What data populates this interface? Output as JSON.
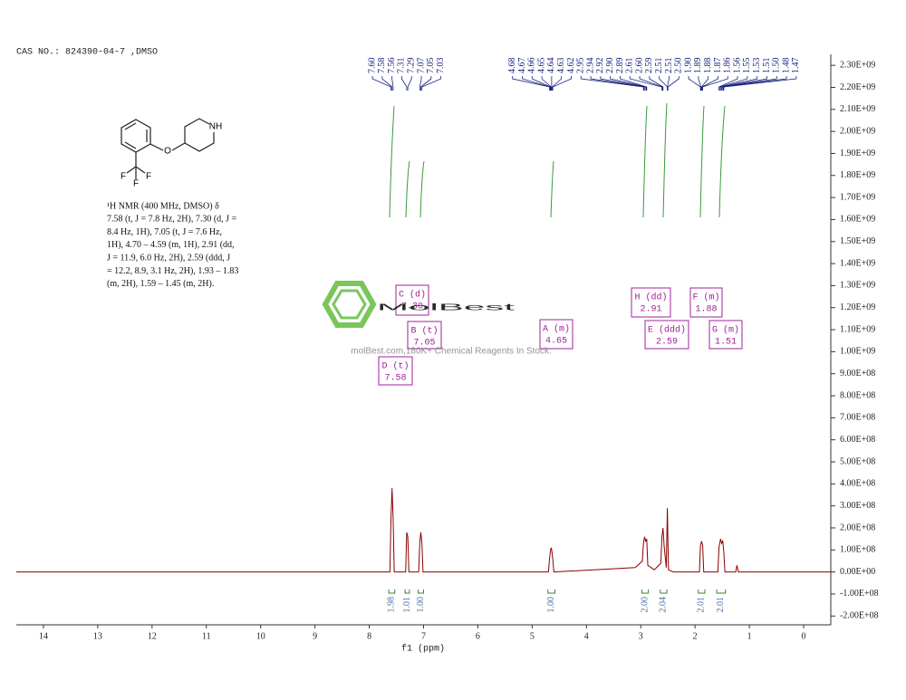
{
  "header": {
    "cas": "CAS NO.: 824390-04-7  ,DMSO"
  },
  "structure": {
    "atoms": [
      "O",
      "NH",
      "F",
      "F",
      "F"
    ]
  },
  "description": [
    "¹H NMR (400 MHz, DMSO) δ",
    "7.58 (t, J = 7.8 Hz, 2H), 7.30 (d, J =",
    "8.4 Hz, 1H), 7.05 (t, J = 7.6 Hz,",
    "1H), 4.70 – 4.59 (m, 1H), 2.91 (dd,",
    "J = 11.9, 6.0 Hz, 2H), 2.59 (ddd, J",
    "= 12.2, 8.9, 3.1 Hz, 2H), 1.93 – 1.83",
    "(m, 2H), 1.59 – 1.45 (m, 2H)."
  ],
  "watermark": {
    "brand": "MolBest",
    "tagline": "molBest.com,180K+ Chemical Reagents In Stock."
  },
  "chart_data": {
    "type": "line",
    "x_label": "f1 (ppm)",
    "color": "#8b0000",
    "xlim": [
      14.5,
      -0.5
    ],
    "xticks": [
      14,
      13,
      12,
      11,
      10,
      9,
      8,
      7,
      6,
      5,
      4,
      3,
      2,
      1,
      0
    ],
    "ylim": [
      -240000000,
      2350000000
    ],
    "yticks": [
      {
        "value": 2300000000,
        "label": "2.30E+09"
      },
      {
        "value": 2200000000,
        "label": "2.20E+09"
      },
      {
        "value": 2100000000,
        "label": "2.10E+09"
      },
      {
        "value": 2000000000,
        "label": "2.00E+09"
      },
      {
        "value": 1900000000,
        "label": "1.90E+09"
      },
      {
        "value": 1800000000,
        "label": "1.80E+09"
      },
      {
        "value": 1700000000,
        "label": "1.70E+09"
      },
      {
        "value": 1600000000,
        "label": "1.60E+09"
      },
      {
        "value": 1500000000,
        "label": "1.50E+09"
      },
      {
        "value": 1400000000,
        "label": "1.40E+09"
      },
      {
        "value": 1300000000,
        "label": "1.30E+09"
      },
      {
        "value": 1200000000,
        "label": "1.20E+09"
      },
      {
        "value": 1100000000,
        "label": "1.10E+09"
      },
      {
        "value": 1000000000,
        "label": "1.00E+09"
      },
      {
        "value": 900000000,
        "label": "9.00E+08"
      },
      {
        "value": 800000000,
        "label": "8.00E+08"
      },
      {
        "value": 700000000,
        "label": "7.00E+08"
      },
      {
        "value": 600000000,
        "label": "6.00E+08"
      },
      {
        "value": 500000000,
        "label": "5.00E+08"
      },
      {
        "value": 400000000,
        "label": "4.00E+08"
      },
      {
        "value": 300000000,
        "label": "3.00E+08"
      },
      {
        "value": 200000000,
        "label": "2.00E+08"
      },
      {
        "value": 100000000,
        "label": "1.00E+08"
      },
      {
        "value": 0,
        "label": "0.00E+00"
      },
      {
        "value": -100000000,
        "label": "-1.00E+08"
      },
      {
        "value": -200000000,
        "label": "-2.00E+08"
      }
    ],
    "x": [
      14.5,
      7.62,
      7.6,
      7.58,
      7.56,
      7.54,
      7.33,
      7.31,
      7.29,
      7.27,
      7.09,
      7.07,
      7.05,
      7.03,
      7.01,
      4.7,
      4.68,
      4.66,
      4.65,
      4.64,
      4.62,
      4.6,
      3.1,
      2.97,
      2.95,
      2.93,
      2.91,
      2.89,
      2.87,
      2.75,
      2.63,
      2.61,
      2.59,
      2.57,
      2.53,
      2.51,
      2.49,
      2.4,
      1.92,
      1.9,
      1.88,
      1.86,
      1.84,
      1.58,
      1.56,
      1.53,
      1.51,
      1.49,
      1.47,
      1.45,
      1.25,
      1.23,
      1.2,
      -0.5
    ],
    "values": [
      0,
      0,
      240000000,
      380000000,
      240000000,
      0,
      0,
      180000000,
      160000000,
      0,
      0,
      130000000,
      180000000,
      130000000,
      0,
      0,
      60000000,
      100000000,
      110000000,
      100000000,
      60000000,
      0,
      20000000,
      50000000,
      130000000,
      160000000,
      140000000,
      150000000,
      30000000,
      10000000,
      40000000,
      160000000,
      200000000,
      120000000,
      20000000,
      290000000,
      10000000,
      0,
      0,
      120000000,
      140000000,
      120000000,
      0,
      0,
      110000000,
      150000000,
      130000000,
      140000000,
      90000000,
      0,
      0,
      30000000,
      0,
      0
    ],
    "peaks": {
      "values": [
        7.6,
        7.58,
        7.56,
        7.31,
        7.29,
        7.07,
        7.05,
        7.03,
        4.68,
        4.67,
        4.66,
        4.65,
        4.64,
        4.63,
        4.62,
        2.95,
        2.94,
        2.92,
        2.9,
        2.89,
        2.61,
        2.6,
        2.59,
        2.51,
        2.51,
        2.5,
        1.9,
        1.89,
        1.88,
        1.87,
        1.86,
        1.56,
        1.55,
        1.53,
        1.51,
        1.5,
        1.48,
        1.47
      ],
      "value_labels": [
        "7.60",
        "7.58",
        "7.56",
        "7.31",
        "7.29",
        "7.07",
        "7.05",
        "7.03",
        "4.68",
        "4.67",
        "4.66",
        "4.65",
        "4.64",
        "4.63",
        "4.62",
        "2.95",
        "2.94",
        "2.92",
        "2.90",
        "2.89",
        "2.61",
        "2.60",
        "2.59",
        "2.51",
        "2.51",
        "2.50",
        "1.90",
        "1.89",
        "1.88",
        "1.87",
        "1.86",
        "1.56",
        "1.55",
        "1.53",
        "1.51",
        "1.50",
        "1.48",
        "1.47"
      ]
    },
    "multiplets": {
      "names": [
        "D (t)",
        "C (d)",
        "B (t)",
        "A (m)",
        "H (dd)",
        "E (ddd)",
        "F (m)",
        "G (m)"
      ],
      "values": [
        7.58,
        7.3,
        7.05,
        4.65,
        2.91,
        2.59,
        1.88,
        1.51
      ],
      "value_labels": [
        "7.58",
        "7.30",
        "7.05",
        "4.65",
        "2.91",
        "2.59",
        "1.88",
        "1.51"
      ]
    },
    "integrals": {
      "from": [
        7.64,
        7.34,
        7.1,
        4.71,
        2.98,
        2.64,
        1.94,
        1.6
      ],
      "to": [
        7.53,
        7.26,
        7.0,
        4.58,
        2.86,
        2.52,
        1.82,
        1.44
      ],
      "values": [
        1.98,
        1.01,
        1,
        1,
        2,
        2.04,
        2.01,
        2.01
      ],
      "value_labels": [
        "1.98",
        "1.01",
        "1.00",
        "1.00",
        "2.00",
        "2.04",
        "2.01",
        "2.01"
      ]
    }
  }
}
